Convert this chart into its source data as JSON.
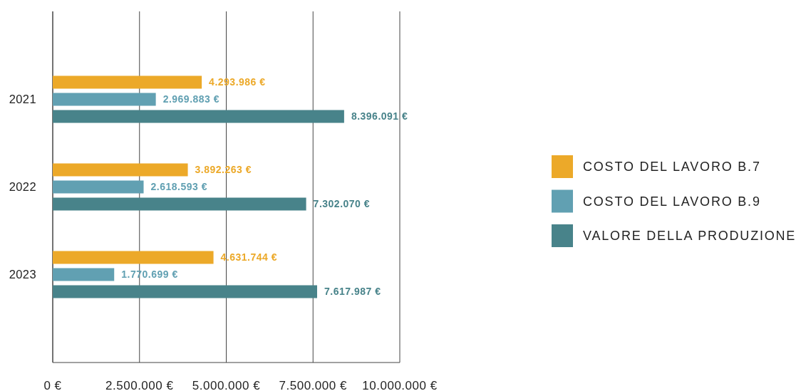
{
  "chart_data": {
    "type": "bar",
    "orientation": "horizontal",
    "categories": [
      "2021",
      "2022",
      "2023"
    ],
    "series": [
      {
        "name": "COSTO DEL LAVORO B.7",
        "color": "#eca929",
        "values": [
          4293986,
          3892263,
          4631744
        ],
        "value_labels": [
          "4.293.986 €",
          "3.892.263 €",
          "4.631.744 €"
        ]
      },
      {
        "name": "COSTO DEL LAVORO B.9",
        "color": "#61a0b2",
        "values": [
          2969883,
          2618593,
          1770699
        ],
        "value_labels": [
          "2.969.883 €",
          "2.618.593 €",
          "1.770.699 €"
        ]
      },
      {
        "name": "VALORE DELLA PRODUZIONE",
        "color": "#48838a",
        "values": [
          8396091,
          7302070,
          7617987
        ],
        "value_labels": [
          "8.396.091 €",
          "7.302.070 €",
          "7.617.987 €"
        ]
      }
    ],
    "xlim": [
      0,
      10000000
    ],
    "xticks": [
      {
        "value": 0,
        "label": "0 €"
      },
      {
        "value": 2500000,
        "label": "2.500.000 €"
      },
      {
        "value": 5000000,
        "label": "5.000.000 €"
      },
      {
        "value": 7500000,
        "label": "7.500.000 €"
      },
      {
        "value": 10000000,
        "label": "10.000.000 €"
      }
    ],
    "grid": "x",
    "legend": "right"
  }
}
